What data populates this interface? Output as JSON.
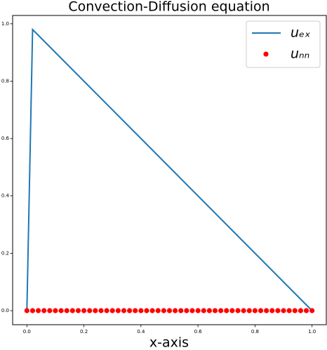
{
  "chart_data": {
    "type": "line",
    "title": "Convection-Diffusion equation",
    "xlabel": "x-axis",
    "xlim": [
      -0.05,
      1.05
    ],
    "ylim": [
      -0.049,
      1.029
    ],
    "xticks": [
      {
        "value": 0,
        "label": "0.0"
      },
      {
        "value": 0.2,
        "label": "0.2"
      },
      {
        "value": 0.4,
        "label": "0.4"
      },
      {
        "value": 0.6,
        "label": "0.6"
      },
      {
        "value": 0.8,
        "label": "0.8"
      },
      {
        "value": 1,
        "label": "1.0"
      }
    ],
    "yticks": [
      {
        "value": 0,
        "label": "0.0"
      },
      {
        "value": 0.2,
        "label": "0.2"
      },
      {
        "value": 0.4,
        "label": "0.4"
      },
      {
        "value": 0.6,
        "label": "0.6"
      },
      {
        "value": 0.8,
        "label": "0.8"
      },
      {
        "value": 1,
        "label": "1.0"
      }
    ],
    "legend": "upper right",
    "series": [
      {
        "name": "uₑₓ",
        "type": "line",
        "color": "#1f77b4",
        "x": [
          0,
          0.02,
          1
        ],
        "values": [
          0,
          0.98,
          0
        ]
      },
      {
        "name": "uₙₙ",
        "type": "scatter",
        "color": "#ff0000",
        "x": [
          0,
          0.02,
          0.04,
          0.06,
          0.08,
          0.1,
          0.12,
          0.14,
          0.16,
          0.18,
          0.2,
          0.22,
          0.24,
          0.26,
          0.28,
          0.3,
          0.32,
          0.34,
          0.36,
          0.38,
          0.4,
          0.42,
          0.44,
          0.46,
          0.48,
          0.5,
          0.52,
          0.54,
          0.56,
          0.58,
          0.6,
          0.62,
          0.64,
          0.66,
          0.68,
          0.7,
          0.72,
          0.74,
          0.76,
          0.78,
          0.8,
          0.82,
          0.84,
          0.86,
          0.88,
          0.9,
          0.92,
          0.94,
          0.96,
          0.98,
          1
        ],
        "values": [
          0,
          0,
          0,
          0,
          0,
          0,
          0,
          0,
          0,
          0,
          0,
          0,
          0,
          0,
          0,
          0,
          0,
          0,
          0,
          0,
          0,
          0,
          0,
          0,
          0,
          0,
          0,
          0,
          0,
          0,
          0,
          0,
          0,
          0,
          0,
          0,
          0,
          0,
          0,
          0,
          0,
          0,
          0,
          0,
          0,
          0,
          0,
          0,
          0,
          0,
          0
        ]
      }
    ]
  }
}
